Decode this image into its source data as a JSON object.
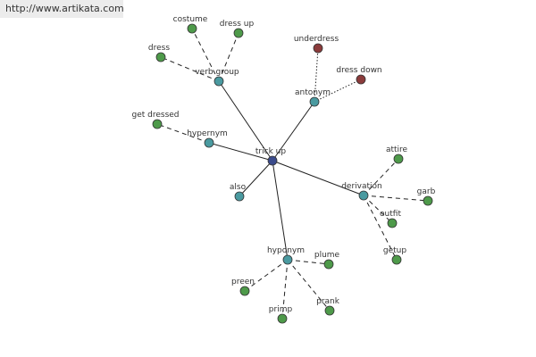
{
  "watermark": "http://www.artikata.com",
  "nodes": [
    {
      "label": "trick up"
    },
    {
      "label": "verb group"
    },
    {
      "label": "costume"
    },
    {
      "label": "dress up"
    },
    {
      "label": "dress"
    },
    {
      "label": "underdress"
    },
    {
      "label": "dress down"
    },
    {
      "label": "antonym"
    },
    {
      "label": "get dressed"
    },
    {
      "label": "hypernym"
    },
    {
      "label": "also"
    },
    {
      "label": "derivation"
    },
    {
      "label": "attire"
    },
    {
      "label": "garb"
    },
    {
      "label": "outfit"
    },
    {
      "label": "getup"
    },
    {
      "label": "hyponym"
    },
    {
      "label": "plume"
    },
    {
      "label": "preen"
    },
    {
      "label": "primp"
    },
    {
      "label": "prank"
    }
  ]
}
